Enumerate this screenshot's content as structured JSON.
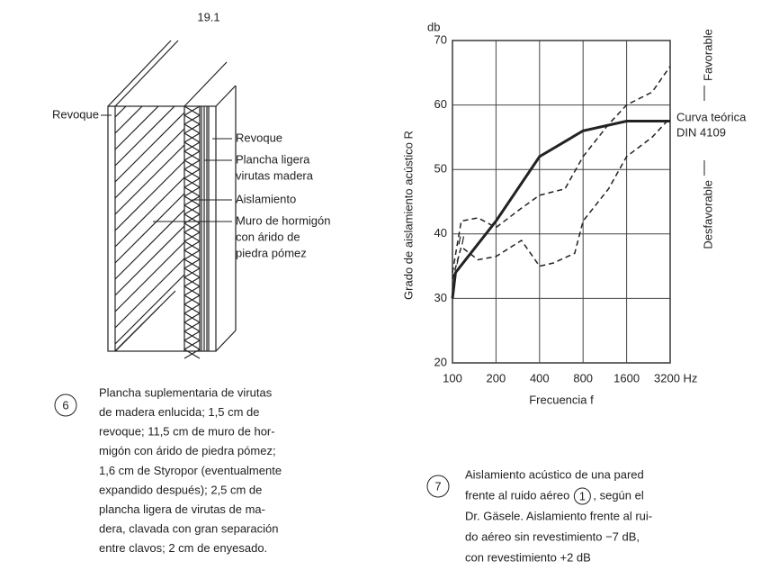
{
  "diagram": {
    "title": "19.1",
    "left_label": "Revoque",
    "right_labels": [
      [
        "Revoque"
      ],
      [
        "Plancha ligera",
        "virutas madera"
      ],
      [
        "Aislamiento"
      ],
      [
        "Muro de hormigón",
        "con árido de",
        "piedra pómez"
      ]
    ]
  },
  "captions": [
    {
      "number": "6",
      "lines": [
        "Plancha suplementaria de virutas",
        "de madera enlucida; 1,5 cm de",
        "revoque; 11,5 cm de muro de hor-",
        "migón con árido de piedra pómez;",
        "1,6 cm de Styropor (eventualmente",
        "expandido después); 2,5 cm de",
        "plancha ligera de virutas de ma-",
        "dera, clavada con gran separación",
        "entre clavos; 2 cm de enyesado."
      ]
    },
    {
      "number": "7",
      "lines": [
        "Aislamiento acústico de una pared",
        [
          "frente al ruido aéreo",
          "1",
          ", según el"
        ],
        "Dr. Gäsele. Aislamiento frente al rui-",
        "do aéreo sin revestimiento −7 dB,",
        "con revestimiento +2 dB"
      ]
    }
  ],
  "chart_data": {
    "type": "line",
    "y_unit": "db",
    "y_label": "Grado de aislamiento acústico R",
    "x_label": "Frecuencia f",
    "xscale": "log",
    "xlim": [
      100,
      3200
    ],
    "xticks": [
      100,
      200,
      400,
      800,
      1600,
      {
        "value": 3200,
        "label": "3200 Hz"
      }
    ],
    "ylim": [
      20,
      70
    ],
    "yticks": [
      20,
      30,
      40,
      50,
      60,
      70
    ],
    "grid": true,
    "series": [
      {
        "color": "#222",
        "style": "solid",
        "x": [
          100,
          105,
          200,
          400,
          800,
          1600,
          3200
        ],
        "values": [
          30,
          34,
          42,
          52,
          56,
          57.5,
          57.5
        ]
      },
      {
        "color": "#222",
        "style": "dashed",
        "x": [
          100,
          115,
          150,
          200,
          300,
          400,
          600,
          800,
          1200,
          1600,
          2400,
          3200
        ],
        "values": [
          34,
          42,
          42.5,
          41,
          44,
          46,
          47,
          52,
          57,
          60,
          62,
          66
        ]
      },
      {
        "color": "#222",
        "style": "dashed",
        "x": [
          100,
          115,
          150,
          200,
          300,
          400,
          500,
          700,
          800,
          1200,
          1600,
          2400,
          3200
        ],
        "values": [
          33,
          38,
          36,
          36.5,
          39,
          35,
          35.5,
          37,
          42,
          47,
          52,
          55,
          58
        ]
      }
    ],
    "annotations": {
      "curve": [
        "Curva teórica",
        "DIN 4109"
      ],
      "I": "I",
      "II": "II",
      "favorable": "Favorable",
      "unfavorable": "Desfavorable"
    }
  }
}
